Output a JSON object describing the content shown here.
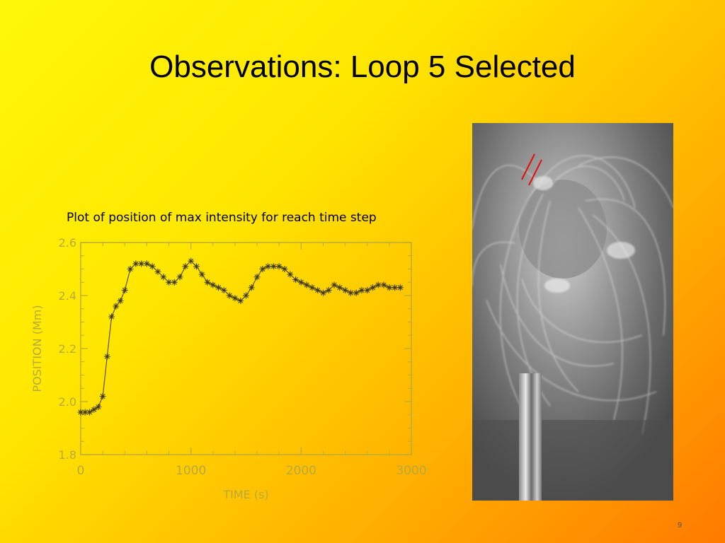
{
  "slide": {
    "title": "Observations: Loop 5 Selected",
    "caption": "Plot of position of max intensity for reach time step",
    "page_number": "9"
  },
  "colors": {
    "background_start": "#fff70a",
    "background_end": "#ff7a00",
    "plot_ink": "#b8aa3a",
    "marker_lines": "#e01010"
  },
  "chart_data": {
    "type": "line",
    "title": "",
    "xlabel": "TIME (s)",
    "ylabel": "POSITION (Mm)",
    "xlim": [
      0,
      3000
    ],
    "ylim": [
      1.8,
      2.6
    ],
    "xticks": [
      0,
      1000,
      2000,
      3000
    ],
    "xtick_labels": [
      "0",
      "1000",
      "2000",
      "3000"
    ],
    "yticks": [
      1.8,
      2.0,
      2.2,
      2.4,
      2.6
    ],
    "ytick_labels": [
      "1.8",
      "2.0",
      "2.2",
      "2.4",
      "2.6"
    ],
    "grid": false,
    "marker": "asterisk",
    "series": [
      {
        "name": "",
        "x": [
          0,
          40,
          80,
          120,
          160,
          200,
          240,
          280,
          320,
          360,
          400,
          450,
          500,
          550,
          600,
          650,
          700,
          750,
          800,
          850,
          900,
          950,
          1000,
          1050,
          1100,
          1150,
          1200,
          1250,
          1300,
          1350,
          1400,
          1450,
          1500,
          1550,
          1600,
          1650,
          1700,
          1750,
          1800,
          1850,
          1900,
          1950,
          2000,
          2050,
          2100,
          2150,
          2200,
          2250,
          2300,
          2350,
          2400,
          2450,
          2500,
          2550,
          2600,
          2650,
          2700,
          2750,
          2800,
          2850,
          2900
        ],
        "y": [
          1.96,
          1.96,
          1.96,
          1.97,
          1.98,
          2.02,
          2.17,
          2.32,
          2.36,
          2.38,
          2.42,
          2.5,
          2.52,
          2.52,
          2.52,
          2.51,
          2.49,
          2.47,
          2.45,
          2.45,
          2.47,
          2.51,
          2.53,
          2.51,
          2.48,
          2.45,
          2.44,
          2.43,
          2.42,
          2.4,
          2.39,
          2.38,
          2.4,
          2.43,
          2.47,
          2.5,
          2.51,
          2.51,
          2.51,
          2.5,
          2.48,
          2.46,
          2.45,
          2.44,
          2.43,
          2.42,
          2.41,
          2.42,
          2.44,
          2.43,
          2.42,
          2.41,
          2.41,
          2.42,
          2.42,
          2.43,
          2.44,
          2.44,
          2.43,
          2.43,
          2.43
        ]
      }
    ]
  }
}
